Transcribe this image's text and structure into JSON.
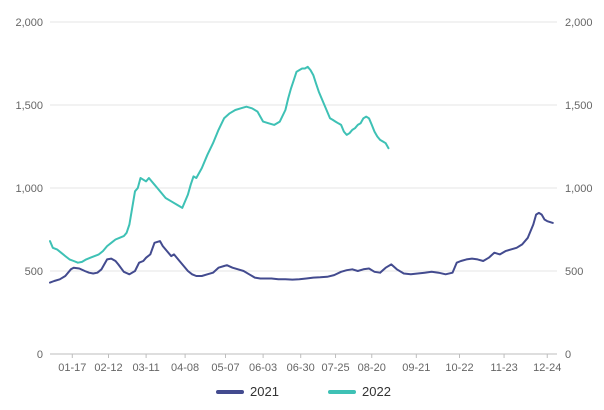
{
  "chart_data": {
    "type": "line",
    "y_range": [
      0,
      2000
    ],
    "y_ticks": [
      "0",
      "500",
      "1,000",
      "1,500",
      "2,000"
    ],
    "y_tick_values": [
      0,
      500,
      1000,
      1500,
      2000
    ],
    "x_range": [
      1,
      365
    ],
    "x_ticks": [
      "01-17",
      "02-12",
      "03-11",
      "04-08",
      "05-07",
      "06-03",
      "06-30",
      "07-25",
      "08-20",
      "09-21",
      "10-22",
      "11-23",
      "12-24"
    ],
    "x_tick_days": [
      17,
      43,
      70,
      98,
      127,
      154,
      181,
      206,
      232,
      264,
      295,
      327,
      358
    ],
    "grid": "horizontal",
    "legend": "bottom-center",
    "colors": {
      "2021": "#434b8f",
      "2022": "#3ec1b5"
    },
    "series": [
      {
        "name": "2021",
        "x_day_of_year": [
          1,
          4,
          8,
          12,
          16,
          18,
          22,
          26,
          29,
          32,
          35,
          38,
          42,
          45,
          48,
          50,
          54,
          58,
          62,
          65,
          68,
          70,
          73,
          76,
          80,
          82,
          85,
          88,
          90,
          94,
          97,
          100,
          103,
          106,
          110,
          114,
          118,
          122,
          126,
          128,
          132,
          136,
          140,
          144,
          148,
          152,
          156,
          160,
          165,
          170,
          175,
          180,
          185,
          190,
          195,
          200,
          205,
          210,
          214,
          218,
          222,
          226,
          230,
          234,
          238,
          242,
          246,
          250,
          255,
          260,
          265,
          270,
          275,
          280,
          285,
          290,
          293,
          296,
          300,
          304,
          308,
          312,
          316,
          320,
          324,
          328,
          332,
          336,
          340,
          344,
          348,
          350,
          352,
          354,
          356,
          358,
          362
        ],
        "values": [
          430,
          440,
          450,
          470,
          510,
          520,
          515,
          500,
          490,
          485,
          490,
          510,
          570,
          575,
          560,
          540,
          495,
          480,
          500,
          550,
          560,
          580,
          600,
          670,
          680,
          650,
          620,
          590,
          600,
          560,
          530,
          500,
          480,
          470,
          470,
          480,
          490,
          520,
          530,
          535,
          520,
          510,
          500,
          480,
          460,
          455,
          455,
          455,
          450,
          450,
          448,
          450,
          455,
          460,
          462,
          465,
          475,
          495,
          505,
          510,
          500,
          510,
          515,
          495,
          490,
          520,
          540,
          510,
          485,
          480,
          485,
          490,
          495,
          490,
          480,
          490,
          550,
          560,
          570,
          575,
          570,
          560,
          580,
          610,
          600,
          620,
          630,
          640,
          660,
          700,
          780,
          840,
          850,
          840,
          810,
          800,
          790
        ]
      },
      {
        "name": "2022",
        "x_day_of_year": [
          1,
          3,
          6,
          9,
          12,
          15,
          18,
          21,
          24,
          27,
          30,
          33,
          36,
          39,
          42,
          45,
          48,
          51,
          54,
          56,
          58,
          60,
          62,
          64,
          66,
          68,
          70,
          72,
          74,
          76,
          78,
          80,
          84,
          88,
          92,
          96,
          100,
          102,
          104,
          106,
          110,
          114,
          118,
          122,
          126,
          130,
          134,
          138,
          142,
          146,
          150,
          152,
          154,
          158,
          162,
          166,
          170,
          172,
          174,
          176,
          178,
          180,
          182,
          184,
          186,
          188,
          190,
          192,
          194,
          196,
          198,
          200,
          202,
          204,
          206,
          208,
          210,
          212,
          214,
          216,
          218,
          220,
          222,
          224,
          226,
          228,
          230,
          232,
          234,
          236,
          238,
          240,
          242,
          244
        ],
        "values": [
          680,
          640,
          630,
          610,
          590,
          570,
          560,
          550,
          555,
          570,
          580,
          590,
          600,
          620,
          650,
          670,
          690,
          700,
          710,
          730,
          780,
          880,
          980,
          1000,
          1060,
          1050,
          1040,
          1060,
          1040,
          1020,
          1000,
          980,
          940,
          920,
          900,
          880,
          960,
          1020,
          1070,
          1060,
          1120,
          1200,
          1270,
          1350,
          1420,
          1450,
          1470,
          1480,
          1490,
          1480,
          1460,
          1430,
          1400,
          1390,
          1380,
          1400,
          1470,
          1540,
          1600,
          1650,
          1700,
          1710,
          1720,
          1720,
          1730,
          1710,
          1680,
          1630,
          1580,
          1540,
          1500,
          1460,
          1420,
          1410,
          1400,
          1390,
          1380,
          1340,
          1320,
          1330,
          1350,
          1360,
          1380,
          1390,
          1420,
          1430,
          1420,
          1380,
          1340,
          1310,
          1290,
          1280,
          1270,
          1240
        ]
      }
    ]
  }
}
